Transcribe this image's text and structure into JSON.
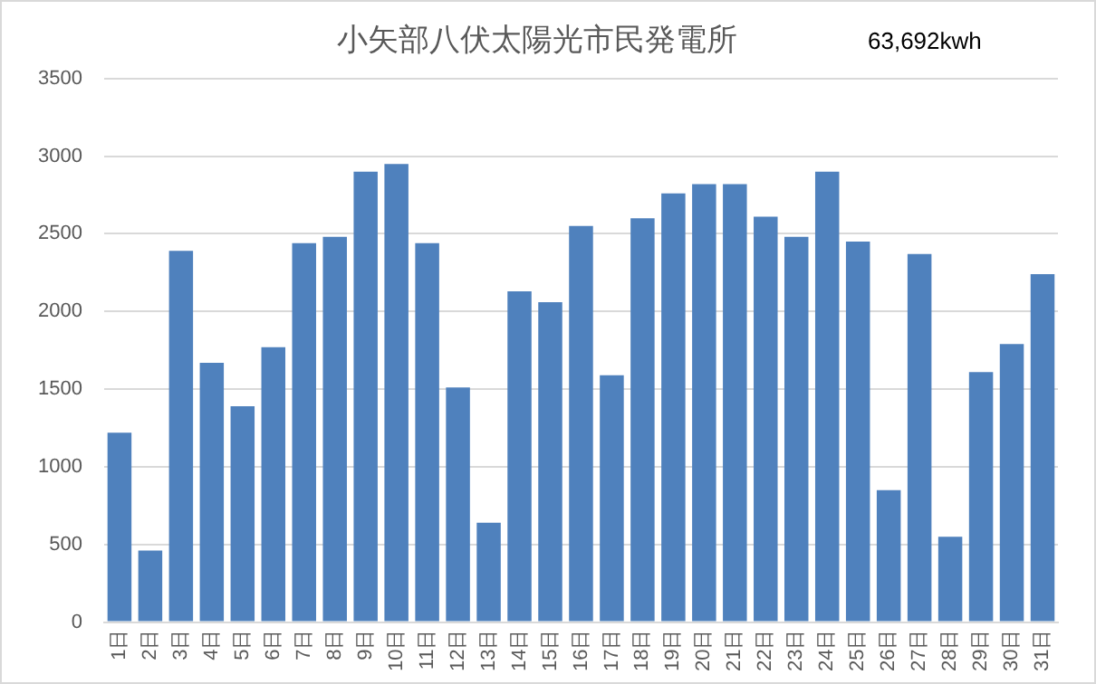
{
  "chart_data": {
    "type": "bar",
    "title": "小矢部八伏太陽光市民発電所",
    "annotations": [
      "63,692kwh"
    ],
    "categories": [
      "1日",
      "2日",
      "3日",
      "4日",
      "5日",
      "6日",
      "7日",
      "8日",
      "9日",
      "10日",
      "11日",
      "12日",
      "13日",
      "14日",
      "15日",
      "16日",
      "17日",
      "18日",
      "19日",
      "20日",
      "21日",
      "22日",
      "23日",
      "24日",
      "25日",
      "26日",
      "27日",
      "28日",
      "29日",
      "30日",
      "31日"
    ],
    "values": [
      1220,
      460,
      2390,
      1670,
      1390,
      1770,
      2440,
      2480,
      2900,
      2950,
      2440,
      1510,
      640,
      2130,
      2060,
      2550,
      1590,
      2600,
      2760,
      2820,
      2820,
      2610,
      2480,
      2900,
      2450,
      850,
      2370,
      550,
      1610,
      1790,
      2240
    ],
    "color": "#4f81bd",
    "ylim": [
      0,
      3500
    ],
    "yticks": [
      0,
      500,
      1000,
      1500,
      2000,
      2500,
      3000,
      3500
    ],
    "grid": "y",
    "legend": false
  }
}
